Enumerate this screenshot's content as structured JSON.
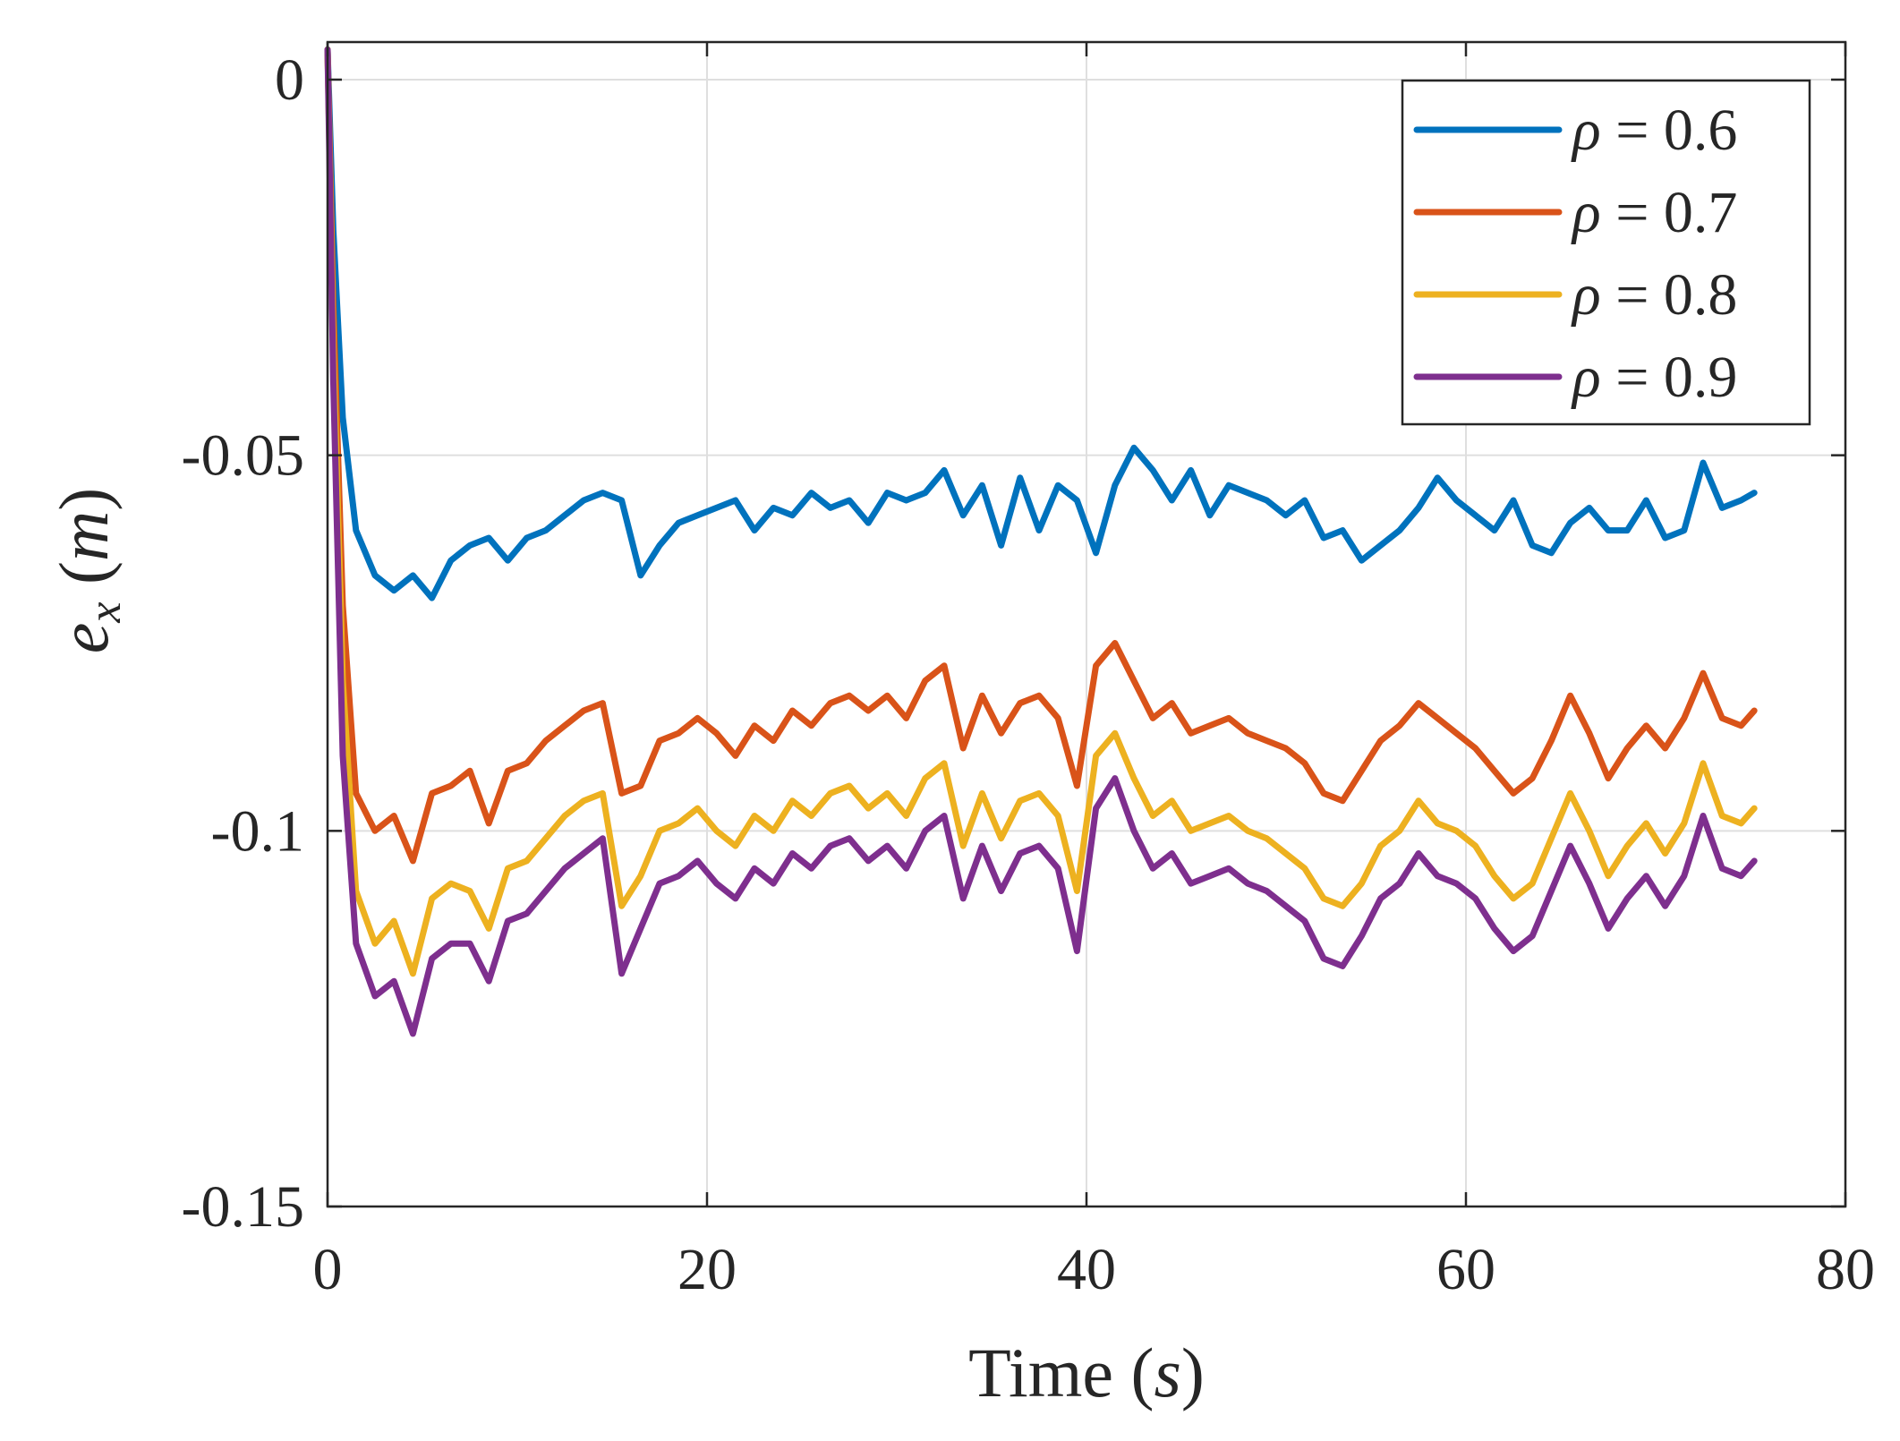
{
  "chart_data": {
    "type": "line",
    "title": "",
    "xlabel_main": "Time",
    "xlabel_unit": "s",
    "ylabel_main": "e",
    "ylabel_sub": "x",
    "ylabel_unit": "m",
    "xlim": [
      0,
      80
    ],
    "ylim": [
      -0.15,
      0.005
    ],
    "x_ticks": [
      0,
      20,
      40,
      60,
      80
    ],
    "x_tick_labels": [
      "0",
      "20",
      "40",
      "60",
      "80"
    ],
    "y_ticks": [
      0,
      -0.05,
      -0.1,
      -0.15
    ],
    "y_tick_labels": [
      "0",
      "-0.05",
      "-0.1",
      "-0.15"
    ],
    "grid": true,
    "legend_position": "top-right",
    "legend_symbol": "ρ",
    "legend_operator": "=",
    "x": [
      0,
      0.3,
      0.8,
      1.5,
      2.5,
      3.5,
      4.5,
      5.5,
      6.5,
      7.5,
      8.5,
      9.5,
      10.5,
      11.5,
      12.5,
      13.5,
      14.5,
      15.5,
      16.5,
      17.5,
      18.5,
      19.5,
      20.5,
      21.5,
      22.5,
      23.5,
      24.5,
      25.5,
      26.5,
      27.5,
      28.5,
      29.5,
      30.5,
      31.5,
      32.5,
      33.5,
      34.5,
      35.5,
      36.5,
      37.5,
      38.5,
      39.5,
      40.5,
      41.5,
      42.5,
      43.5,
      44.5,
      45.5,
      46.5,
      47.5,
      48.5,
      49.5,
      50.5,
      51.5,
      52.5,
      53.5,
      54.5,
      55.5,
      56.5,
      57.5,
      58.5,
      59.5,
      60.5,
      61.5,
      62.5,
      63.5,
      64.5,
      65.5,
      66.5,
      67.5,
      68.5,
      69.5,
      70.5,
      71.5,
      72.5,
      73.5,
      74.5,
      75.2
    ],
    "series": [
      {
        "name": "0.6",
        "color": "#0072BD",
        "values": [
          0.004,
          -0.02,
          -0.045,
          -0.06,
          -0.066,
          -0.068,
          -0.066,
          -0.069,
          -0.064,
          -0.062,
          -0.061,
          -0.064,
          -0.061,
          -0.06,
          -0.058,
          -0.056,
          -0.055,
          -0.056,
          -0.066,
          -0.062,
          -0.059,
          -0.058,
          -0.057,
          -0.056,
          -0.06,
          -0.057,
          -0.058,
          -0.055,
          -0.057,
          -0.056,
          -0.059,
          -0.055,
          -0.056,
          -0.055,
          -0.052,
          -0.058,
          -0.054,
          -0.062,
          -0.053,
          -0.06,
          -0.054,
          -0.056,
          -0.063,
          -0.054,
          -0.049,
          -0.052,
          -0.056,
          -0.052,
          -0.058,
          -0.054,
          -0.055,
          -0.056,
          -0.058,
          -0.056,
          -0.061,
          -0.06,
          -0.064,
          -0.062,
          -0.06,
          -0.057,
          -0.053,
          -0.056,
          -0.058,
          -0.06,
          -0.056,
          -0.062,
          -0.063,
          -0.059,
          -0.057,
          -0.06,
          -0.06,
          -0.056,
          -0.061,
          -0.06,
          -0.051,
          -0.057,
          -0.056,
          -0.055
        ]
      },
      {
        "name": "0.7",
        "color": "#D95319",
        "values": [
          0.004,
          -0.03,
          -0.07,
          -0.095,
          -0.1,
          -0.098,
          -0.104,
          -0.095,
          -0.094,
          -0.092,
          -0.099,
          -0.092,
          -0.091,
          -0.088,
          -0.086,
          -0.084,
          -0.083,
          -0.095,
          -0.094,
          -0.088,
          -0.087,
          -0.085,
          -0.087,
          -0.09,
          -0.086,
          -0.088,
          -0.084,
          -0.086,
          -0.083,
          -0.082,
          -0.084,
          -0.082,
          -0.085,
          -0.08,
          -0.078,
          -0.089,
          -0.082,
          -0.087,
          -0.083,
          -0.082,
          -0.085,
          -0.094,
          -0.078,
          -0.075,
          -0.08,
          -0.085,
          -0.083,
          -0.087,
          -0.086,
          -0.085,
          -0.087,
          -0.088,
          -0.089,
          -0.091,
          -0.095,
          -0.096,
          -0.092,
          -0.088,
          -0.086,
          -0.083,
          -0.085,
          -0.087,
          -0.089,
          -0.092,
          -0.095,
          -0.093,
          -0.088,
          -0.082,
          -0.087,
          -0.093,
          -0.089,
          -0.086,
          -0.089,
          -0.085,
          -0.079,
          -0.085,
          -0.086,
          -0.084
        ]
      },
      {
        "name": "0.8",
        "color": "#EDB120",
        "values": [
          0.004,
          -0.035,
          -0.08,
          -0.108,
          -0.115,
          -0.112,
          -0.119,
          -0.109,
          -0.107,
          -0.108,
          -0.113,
          -0.105,
          -0.104,
          -0.101,
          -0.098,
          -0.096,
          -0.095,
          -0.11,
          -0.106,
          -0.1,
          -0.099,
          -0.097,
          -0.1,
          -0.102,
          -0.098,
          -0.1,
          -0.096,
          -0.098,
          -0.095,
          -0.094,
          -0.097,
          -0.095,
          -0.098,
          -0.093,
          -0.091,
          -0.102,
          -0.095,
          -0.101,
          -0.096,
          -0.095,
          -0.098,
          -0.108,
          -0.09,
          -0.087,
          -0.093,
          -0.098,
          -0.096,
          -0.1,
          -0.099,
          -0.098,
          -0.1,
          -0.101,
          -0.103,
          -0.105,
          -0.109,
          -0.11,
          -0.107,
          -0.102,
          -0.1,
          -0.096,
          -0.099,
          -0.1,
          -0.102,
          -0.106,
          -0.109,
          -0.107,
          -0.101,
          -0.095,
          -0.1,
          -0.106,
          -0.102,
          -0.099,
          -0.103,
          -0.099,
          -0.091,
          -0.098,
          -0.099,
          -0.097
        ]
      },
      {
        "name": "0.9",
        "color": "#7E2F8E",
        "values": [
          0.004,
          -0.04,
          -0.09,
          -0.115,
          -0.122,
          -0.12,
          -0.127,
          -0.117,
          -0.115,
          -0.115,
          -0.12,
          -0.112,
          -0.111,
          -0.108,
          -0.105,
          -0.103,
          -0.101,
          -0.119,
          -0.113,
          -0.107,
          -0.106,
          -0.104,
          -0.107,
          -0.109,
          -0.105,
          -0.107,
          -0.103,
          -0.105,
          -0.102,
          -0.101,
          -0.104,
          -0.102,
          -0.105,
          -0.1,
          -0.098,
          -0.109,
          -0.102,
          -0.108,
          -0.103,
          -0.102,
          -0.105,
          -0.116,
          -0.097,
          -0.093,
          -0.1,
          -0.105,
          -0.103,
          -0.107,
          -0.106,
          -0.105,
          -0.107,
          -0.108,
          -0.11,
          -0.112,
          -0.117,
          -0.118,
          -0.114,
          -0.109,
          -0.107,
          -0.103,
          -0.106,
          -0.107,
          -0.109,
          -0.113,
          -0.116,
          -0.114,
          -0.108,
          -0.102,
          -0.107,
          -0.113,
          -0.109,
          -0.106,
          -0.11,
          -0.106,
          -0.098,
          -0.105,
          -0.106,
          -0.104
        ]
      }
    ]
  }
}
